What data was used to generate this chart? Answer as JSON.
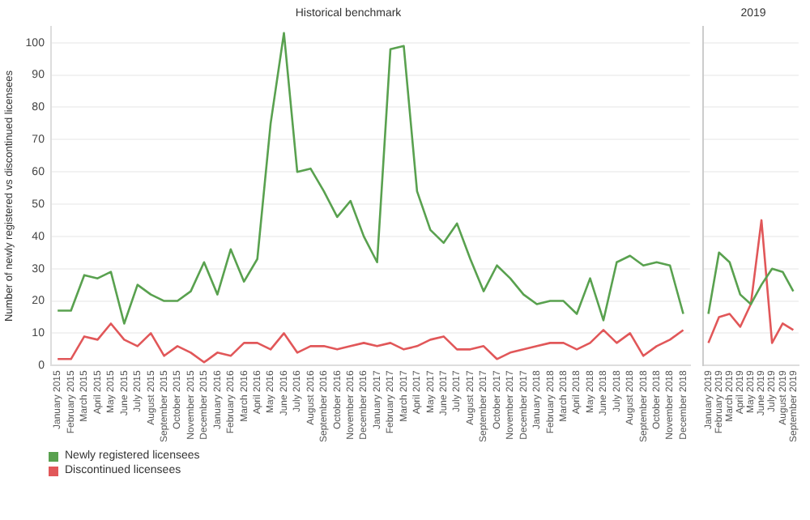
{
  "chart_data": [
    {
      "type": "line",
      "title": "Historical benchmark",
      "ylabel": "Number of newly registered vs discontinued licensees",
      "categories": [
        "January 2015",
        "February 2015",
        "March 2015",
        "April 2015",
        "May 2015",
        "June 2015",
        "July 2015",
        "August 2015",
        "September 2015",
        "October 2015",
        "November 2015",
        "December 2015",
        "January 2016",
        "February 2016",
        "March 2016",
        "April 2016",
        "May 2016",
        "June 2016",
        "July 2016",
        "August 2016",
        "September 2016",
        "October 2016",
        "November 2016",
        "December 2016",
        "January 2017",
        "February 2017",
        "March 2017",
        "April 2017",
        "May 2017",
        "June 2017",
        "July 2017",
        "August 2017",
        "September 2017",
        "October 2017",
        "November 2017",
        "December 2017",
        "January 2018",
        "February 2018",
        "March 2018",
        "April 2018",
        "May 2018",
        "June 2018",
        "July 2018",
        "August 2018",
        "September 2018",
        "October 2018",
        "November 2018",
        "December 2018"
      ],
      "series": [
        {
          "name": "Newly registered licensees",
          "color": "#59a14f",
          "values": [
            17,
            17,
            28,
            27,
            29,
            13,
            25,
            22,
            20,
            20,
            23,
            32,
            22,
            36,
            26,
            33,
            75,
            103,
            60,
            61,
            54,
            46,
            51,
            40,
            32,
            98,
            99,
            54,
            42,
            38,
            44,
            33,
            23,
            31,
            27,
            22,
            19,
            20,
            20,
            16,
            27,
            14,
            32,
            34,
            31,
            32,
            31,
            16
          ]
        },
        {
          "name": "Discontinued licensees",
          "color": "#e15759",
          "values": [
            2,
            2,
            9,
            8,
            13,
            8,
            6,
            10,
            3,
            6,
            4,
            1,
            4,
            3,
            7,
            7,
            5,
            10,
            4,
            6,
            6,
            5,
            6,
            7,
            6,
            7,
            5,
            6,
            8,
            9,
            5,
            5,
            6,
            2,
            4,
            5,
            6,
            7,
            7,
            5,
            7,
            11,
            7,
            10,
            3,
            6,
            8,
            11
          ]
        }
      ],
      "ylim": [
        0,
        105
      ],
      "yticks": [
        0,
        10,
        20,
        30,
        40,
        50,
        60,
        70,
        80,
        90,
        100
      ],
      "grid": "y",
      "legend": "bottom left"
    },
    {
      "type": "line",
      "title": "2019",
      "categories": [
        "January 2019",
        "February 2019",
        "March 2019",
        "April 2019",
        "May 2019",
        "June 2019",
        "July 2019",
        "August 2019",
        "September 2019"
      ],
      "series": [
        {
          "color": "#59a14f",
          "values": [
            16,
            35,
            32,
            22,
            19,
            25,
            30,
            29,
            23
          ]
        },
        {
          "color": "#e15759",
          "values": [
            7,
            15,
            16,
            12,
            19,
            45,
            7,
            13,
            11
          ]
        }
      ],
      "ylim": [
        0,
        105
      ],
      "yticks": [
        0,
        10,
        20,
        30,
        40,
        50,
        60,
        70,
        80,
        90,
        100
      ],
      "grid": "y",
      "tick_labels": "x"
    }
  ]
}
